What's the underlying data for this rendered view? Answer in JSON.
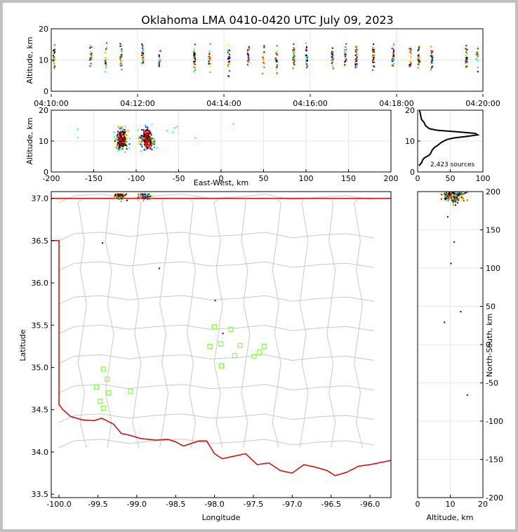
{
  "chart_data": [
    {
      "type": "scatter",
      "panel": "altitude-vs-time",
      "title": "Oklahoma LMA 0410-0420 UTC July 09, 2023",
      "xlabel": "",
      "ylabel": "Altitude, km",
      "x_ticks": [
        "04:10:00",
        "04:12:00",
        "04:14:00",
        "04:16:00",
        "04:18:00",
        "04:20:00"
      ],
      "y_ticks": [
        "0",
        "10",
        "20"
      ],
      "xlim_minutes": [
        0,
        10
      ],
      "ylim": [
        0,
        20
      ],
      "grid": true,
      "source_columns_minutes": [
        0.05,
        0.9,
        1.25,
        1.6,
        2.1,
        2.5,
        3.3,
        3.65,
        4.1,
        4.55,
        4.9,
        5.2,
        5.6,
        5.9,
        6.5,
        6.8,
        7.05,
        7.45,
        7.9,
        8.3,
        8.5,
        8.8,
        9.6,
        9.85
      ],
      "colorscale": "time (blue → red)"
    },
    {
      "type": "scatter",
      "panel": "altitude-vs-east-west",
      "xlabel": "East-West, km",
      "ylabel": "Altitude, km",
      "x_ticks": [
        "-200",
        "-150",
        "-100",
        "-50",
        "0",
        "50",
        "100",
        "150",
        "200"
      ],
      "y_ticks": [
        "0",
        "10",
        "20"
      ],
      "xlim": [
        -200,
        200
      ],
      "ylim": [
        0,
        20
      ],
      "grid": true
    },
    {
      "type": "line",
      "panel": "altitude-histogram",
      "annotation": "2,423 sources",
      "x_ticks": [
        "0",
        "50",
        "100"
      ],
      "y_ticks": [
        "0",
        "10",
        "20"
      ],
      "xlim": [
        0,
        100
      ],
      "ylim": [
        0,
        20
      ],
      "x_counts": [
        2,
        6,
        8,
        10,
        14,
        18,
        20,
        22,
        26,
        30,
        33,
        36,
        40,
        45,
        55,
        75,
        92,
        88,
        60,
        30,
        18,
        12,
        10,
        8,
        6,
        5,
        4,
        3
      ],
      "y_altitude": [
        2,
        3,
        4,
        4.5,
        5,
        5.5,
        6,
        7,
        8,
        8.5,
        9,
        9.5,
        10,
        10.5,
        11,
        11.5,
        12,
        12.5,
        13,
        13.5,
        14,
        15,
        16,
        16.5,
        17,
        18,
        19,
        20
      ]
    },
    {
      "type": "scatter",
      "panel": "plan-view-map",
      "xlabel": "Longitude",
      "ylabel": "Latitude",
      "y2label": "North-South, km",
      "x_ticks": [
        "-100.0",
        "-99.5",
        "-99.0",
        "-98.5",
        "-98.0",
        "-97.5",
        "-97.0",
        "-96.5",
        "-96.0"
      ],
      "y_ticks": [
        "33.5",
        "34.0",
        "34.5",
        "35.0",
        "35.5",
        "36.0",
        "36.5",
        "37.0"
      ],
      "y2_ticks": [
        "-200",
        "-150",
        "-100",
        "-50",
        "0",
        "50",
        "100",
        "150",
        "200"
      ],
      "xlim": [
        -100.1,
        -95.73
      ],
      "ylim": [
        33.46,
        37.08
      ],
      "stations": [
        {
          "lon": -98.0,
          "lat": 35.48
        },
        {
          "lon": -97.79,
          "lat": 35.45
        },
        {
          "lon": -98.06,
          "lat": 35.25
        },
        {
          "lon": -97.92,
          "lat": 35.28
        },
        {
          "lon": -97.67,
          "lat": 35.26
        },
        {
          "lon": -97.36,
          "lat": 35.25
        },
        {
          "lon": -97.42,
          "lat": 35.18
        },
        {
          "lon": -97.74,
          "lat": 35.14
        },
        {
          "lon": -97.49,
          "lat": 35.13
        },
        {
          "lon": -97.91,
          "lat": 35.02
        },
        {
          "lon": -99.43,
          "lat": 34.98
        },
        {
          "lon": -99.38,
          "lat": 34.86
        },
        {
          "lon": -99.52,
          "lat": 34.77
        },
        {
          "lon": -99.36,
          "lat": 34.7
        },
        {
          "lon": -99.08,
          "lat": 34.72
        },
        {
          "lon": -99.47,
          "lat": 34.6
        },
        {
          "lon": -99.43,
          "lat": 34.52
        }
      ],
      "source_clusters": [
        {
          "lon": -99.22,
          "lat": 37.02
        },
        {
          "lon": -98.9,
          "lat": 37.02
        }
      ]
    },
    {
      "type": "scatter",
      "panel": "north-south-vs-altitude",
      "xlabel": "Altitude, km",
      "ylabel": "North-South, km",
      "x_ticks": [
        "0",
        "10",
        "20"
      ],
      "y_ticks": [
        "-200",
        "-150",
        "-100",
        "-50",
        "0",
        "50",
        "100",
        "150",
        "200"
      ],
      "xlim": [
        0,
        20
      ],
      "ylim": [
        -200,
        200
      ],
      "grid": true
    }
  ],
  "colors": {
    "border_red": "#e00000",
    "county_gray": "#c8c8c8",
    "station_green": "#80ff40",
    "source_palette": [
      "#0000ff",
      "#00ffff",
      "#00c000",
      "#ffff00",
      "#ff8000",
      "#ff0000",
      "#800000",
      "#000000"
    ]
  }
}
